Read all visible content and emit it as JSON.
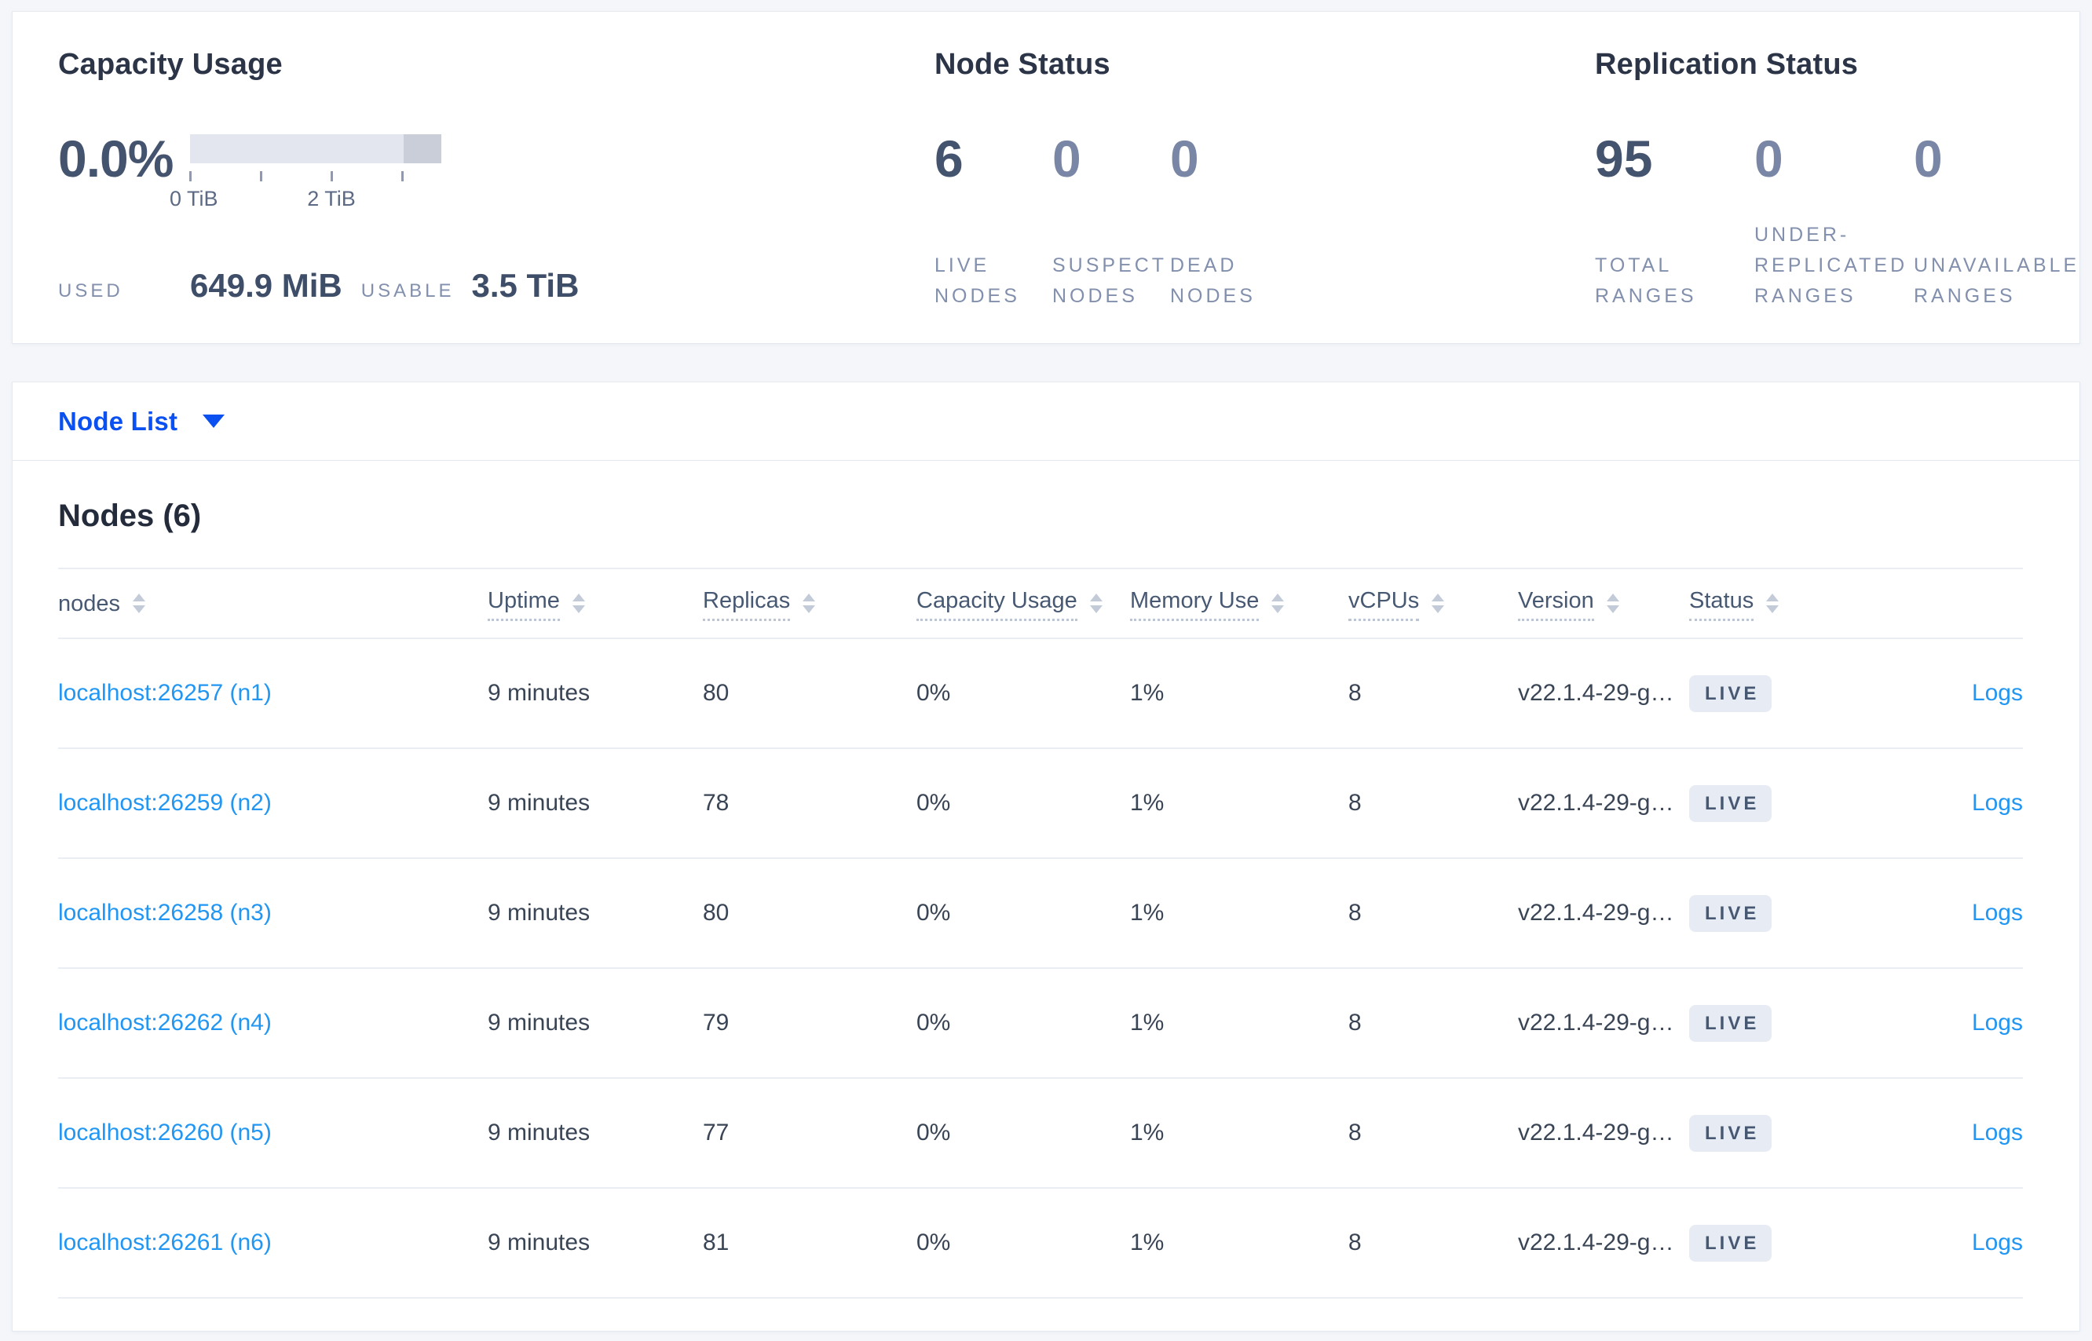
{
  "colors": {
    "accent_blue": "#0b50f0",
    "link_blue": "#2196f3",
    "badge_bg": "#e7ebf3",
    "badge_text": "#475872",
    "bar_light": "#e3e6ee",
    "bar_dark": "#c9ced9"
  },
  "overview": {
    "capacity": {
      "title": "Capacity Usage",
      "percent": "0.0%",
      "bar": {
        "segments": [
          {
            "color": "#e3e6ee",
            "width_pct": 84.9
          },
          {
            "color": "#c9ced9",
            "width_pct": 15.1
          }
        ],
        "tick_positions_pct": [
          0,
          28.125,
          56.25,
          84.375
        ],
        "tick_labels": [
          {
            "text": "0 TiB",
            "pos_pct": 1.5
          },
          {
            "text": "2 TiB",
            "pos_pct": 56.25
          }
        ]
      },
      "used_label": "USED",
      "used_value": "649.9 MiB",
      "usable_label": "USABLE",
      "usable_value": "3.5 TiB"
    },
    "node_status": {
      "title": "Node Status",
      "stats": [
        {
          "value": "6",
          "label": "LIVE NODES",
          "primary": true
        },
        {
          "value": "0",
          "label": "SUSPECT NODES",
          "primary": false
        },
        {
          "value": "0",
          "label": "DEAD NODES",
          "primary": false
        }
      ]
    },
    "replication": {
      "title": "Replication Status",
      "stats": [
        {
          "value": "95",
          "label": "TOTAL RANGES",
          "primary": true
        },
        {
          "value": "0",
          "label": "UNDER-REPLICATED RANGES",
          "primary": false
        },
        {
          "value": "0",
          "label": "UNAVAILABLE RANGES",
          "primary": false
        }
      ]
    }
  },
  "view_selector": {
    "label": "Node List"
  },
  "table": {
    "title": "Nodes (6)",
    "columns": [
      {
        "label": "nodes",
        "underline": false,
        "sortable": true
      },
      {
        "label": "Uptime",
        "underline": true,
        "sortable": true
      },
      {
        "label": "Replicas",
        "underline": true,
        "sortable": true
      },
      {
        "label": "Capacity Usage",
        "underline": true,
        "sortable": true
      },
      {
        "label": "Memory Use",
        "underline": true,
        "sortable": true
      },
      {
        "label": "vCPUs",
        "underline": true,
        "sortable": true
      },
      {
        "label": "Version",
        "underline": true,
        "sortable": true
      },
      {
        "label": "Status",
        "underline": true,
        "sortable": true
      },
      {
        "label": "",
        "underline": false,
        "sortable": false
      }
    ],
    "rows": [
      {
        "node": "localhost:26257 (n1)",
        "uptime": "9 minutes",
        "replicas": "80",
        "capacity": "0%",
        "memory": "1%",
        "vcpus": "8",
        "version": "v22.1.4-29-g…",
        "status": "LIVE",
        "logs": "Logs"
      },
      {
        "node": "localhost:26259 (n2)",
        "uptime": "9 minutes",
        "replicas": "78",
        "capacity": "0%",
        "memory": "1%",
        "vcpus": "8",
        "version": "v22.1.4-29-g…",
        "status": "LIVE",
        "logs": "Logs"
      },
      {
        "node": "localhost:26258 (n3)",
        "uptime": "9 minutes",
        "replicas": "80",
        "capacity": "0%",
        "memory": "1%",
        "vcpus": "8",
        "version": "v22.1.4-29-g…",
        "status": "LIVE",
        "logs": "Logs"
      },
      {
        "node": "localhost:26262 (n4)",
        "uptime": "9 minutes",
        "replicas": "79",
        "capacity": "0%",
        "memory": "1%",
        "vcpus": "8",
        "version": "v22.1.4-29-g…",
        "status": "LIVE",
        "logs": "Logs"
      },
      {
        "node": "localhost:26260 (n5)",
        "uptime": "9 minutes",
        "replicas": "77",
        "capacity": "0%",
        "memory": "1%",
        "vcpus": "8",
        "version": "v22.1.4-29-g…",
        "status": "LIVE",
        "logs": "Logs"
      },
      {
        "node": "localhost:26261 (n6)",
        "uptime": "9 minutes",
        "replicas": "81",
        "capacity": "0%",
        "memory": "1%",
        "vcpus": "8",
        "version": "v22.1.4-29-g…",
        "status": "LIVE",
        "logs": "Logs"
      }
    ]
  }
}
